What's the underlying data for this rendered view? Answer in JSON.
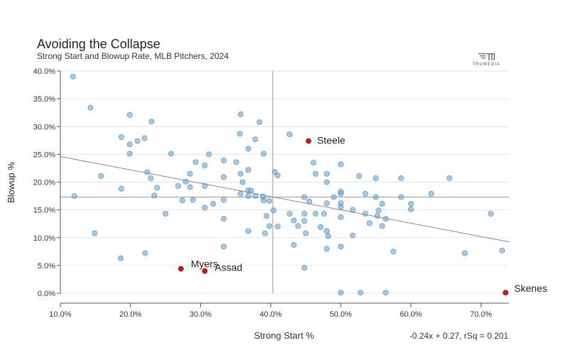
{
  "chart_data": {
    "type": "scatter",
    "title": "Avoiding the Collapse",
    "subtitle": "Strong Start and Blowup Rate, MLB Pitchers, 2024",
    "xlabel": "Strong Start %",
    "ylabel": "Blowup %",
    "xlim": [
      0.1,
      0.74
    ],
    "ylim": [
      0.0,
      0.4
    ],
    "xticks": [
      0.1,
      0.2,
      0.3,
      0.4,
      0.5,
      0.6,
      0.7
    ],
    "xtick_labels": [
      "10.0%",
      "20.0%",
      "30.0%",
      "40.0%",
      "50.0%",
      "60.0%",
      "70.0%"
    ],
    "yticks": [
      0.0,
      0.05,
      0.1,
      0.15,
      0.2,
      0.25,
      0.3,
      0.35,
      0.4
    ],
    "ytick_labels": [
      "0.0%",
      "5.0%",
      "10.0%",
      "15.0%",
      "20.0%",
      "25.0%",
      "30.0%",
      "35.0%",
      "40.0%"
    ],
    "mean_x": 0.403,
    "mean_y": 0.173,
    "trendline": {
      "slope": -0.24,
      "intercept": 0.27,
      "equation": "-0.24x + 0.27, rSq = 0.201"
    },
    "highlighted": [
      {
        "name": "Steele",
        "x": 0.454,
        "y": 0.274
      },
      {
        "name": "Myers",
        "x": 0.272,
        "y": 0.044
      },
      {
        "name": "Assad",
        "x": 0.306,
        "y": 0.04
      },
      {
        "name": "Skenes",
        "x": 0.735,
        "y": 0.001
      }
    ],
    "points": [
      [
        0.118,
        0.39
      ],
      [
        0.143,
        0.334
      ],
      [
        0.12,
        0.175
      ],
      [
        0.149,
        0.108
      ],
      [
        0.158,
        0.211
      ],
      [
        0.187,
        0.281
      ],
      [
        0.199,
        0.321
      ],
      [
        0.199,
        0.268
      ],
      [
        0.21,
        0.274
      ],
      [
        0.199,
        0.251
      ],
      [
        0.22,
        0.279
      ],
      [
        0.23,
        0.309
      ],
      [
        0.187,
        0.188
      ],
      [
        0.186,
        0.063
      ],
      [
        0.221,
        0.072
      ],
      [
        0.224,
        0.218
      ],
      [
        0.229,
        0.207
      ],
      [
        0.234,
        0.176
      ],
      [
        0.238,
        0.19
      ],
      [
        0.25,
        0.143
      ],
      [
        0.258,
        0.251
      ],
      [
        0.268,
        0.193
      ],
      [
        0.274,
        0.167
      ],
      [
        0.279,
        0.201
      ],
      [
        0.285,
        0.215
      ],
      [
        0.285,
        0.191
      ],
      [
        0.289,
        0.168
      ],
      [
        0.293,
        0.236
      ],
      [
        0.306,
        0.23
      ],
      [
        0.306,
        0.193
      ],
      [
        0.306,
        0.154
      ],
      [
        0.312,
        0.25
      ],
      [
        0.318,
        0.161
      ],
      [
        0.333,
        0.239
      ],
      [
        0.333,
        0.209
      ],
      [
        0.333,
        0.168
      ],
      [
        0.333,
        0.134
      ],
      [
        0.333,
        0.084
      ],
      [
        0.351,
        0.236
      ],
      [
        0.357,
        0.322
      ],
      [
        0.356,
        0.287
      ],
      [
        0.357,
        0.215
      ],
      [
        0.36,
        0.2
      ],
      [
        0.357,
        0.179
      ],
      [
        0.368,
        0.26
      ],
      [
        0.368,
        0.222
      ],
      [
        0.368,
        0.185
      ],
      [
        0.372,
        0.185
      ],
      [
        0.368,
        0.175
      ],
      [
        0.378,
        0.277
      ],
      [
        0.384,
        0.308
      ],
      [
        0.378,
        0.175
      ],
      [
        0.39,
        0.251
      ],
      [
        0.389,
        0.174
      ],
      [
        0.39,
        0.167
      ],
      [
        0.394,
        0.139
      ],
      [
        0.392,
        0.108
      ],
      [
        0.368,
        0.112
      ],
      [
        0.398,
        0.166
      ],
      [
        0.398,
        0.121
      ],
      [
        0.406,
        0.218
      ],
      [
        0.41,
        0.212
      ],
      [
        0.404,
        0.149
      ],
      [
        0.41,
        0.12
      ],
      [
        0.427,
        0.286
      ],
      [
        0.427,
        0.143
      ],
      [
        0.433,
        0.131
      ],
      [
        0.433,
        0.087
      ],
      [
        0.439,
        0.121
      ],
      [
        0.448,
        0.173
      ],
      [
        0.448,
        0.143
      ],
      [
        0.448,
        0.13
      ],
      [
        0.45,
        0.108
      ],
      [
        0.448,
        0.046
      ],
      [
        0.461,
        0.235
      ],
      [
        0.464,
        0.215
      ],
      [
        0.464,
        0.143
      ],
      [
        0.455,
        0.165
      ],
      [
        0.471,
        0.119
      ],
      [
        0.476,
        0.143
      ],
      [
        0.48,
        0.215
      ],
      [
        0.48,
        0.2
      ],
      [
        0.48,
        0.162
      ],
      [
        0.48,
        0.112
      ],
      [
        0.48,
        0.08
      ],
      [
        0.482,
        0.103
      ],
      [
        0.49,
        0.173
      ],
      [
        0.5,
        0.232
      ],
      [
        0.5,
        0.183
      ],
      [
        0.5,
        0.179
      ],
      [
        0.5,
        0.162
      ],
      [
        0.5,
        0.155
      ],
      [
        0.5,
        0.137
      ],
      [
        0.5,
        0.084
      ],
      [
        0.5,
        0.001
      ],
      [
        0.517,
        0.15
      ],
      [
        0.517,
        0.104
      ],
      [
        0.526,
        0.211
      ],
      [
        0.528,
        0.001
      ],
      [
        0.535,
        0.179
      ],
      [
        0.535,
        0.143
      ],
      [
        0.541,
        0.126
      ],
      [
        0.55,
        0.207
      ],
      [
        0.55,
        0.173
      ],
      [
        0.552,
        0.139
      ],
      [
        0.554,
        0.149
      ],
      [
        0.559,
        0.161
      ],
      [
        0.559,
        0.121
      ],
      [
        0.564,
        0.134
      ],
      [
        0.564,
        0.001
      ],
      [
        0.575,
        0.075
      ],
      [
        0.586,
        0.207
      ],
      [
        0.586,
        0.173
      ],
      [
        0.6,
        0.161
      ],
      [
        0.6,
        0.151
      ],
      [
        0.629,
        0.179
      ],
      [
        0.655,
        0.207
      ],
      [
        0.677,
        0.072
      ],
      [
        0.714,
        0.143
      ],
      [
        0.73,
        0.077
      ]
    ]
  }
}
